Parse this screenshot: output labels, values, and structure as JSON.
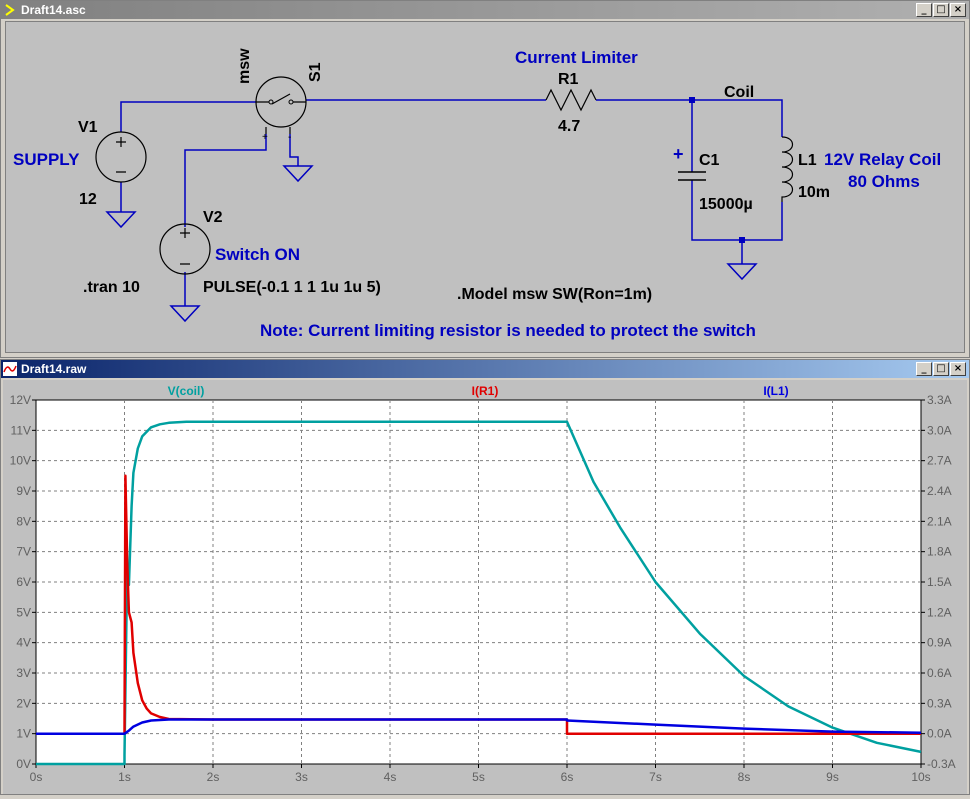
{
  "schematic_window": {
    "title": "Draft14.asc",
    "controls": {
      "minimize": "_",
      "restore": "□",
      "close": "×"
    }
  },
  "schematic": {
    "v1": {
      "name": "V1",
      "label": "SUPPLY",
      "value": "12"
    },
    "v2": {
      "name": "V2",
      "label": "Switch ON",
      "value": "PULSE(-0.1 1 1 1u 1u 5)"
    },
    "s1": {
      "name": "S1",
      "model": "msw",
      "plus": "+",
      "minus": "-"
    },
    "r1": {
      "name": "R1",
      "label": "Current Limiter",
      "value": "4.7"
    },
    "c1": {
      "name": "C1",
      "value": "15000µ",
      "polarity": "+"
    },
    "l1": {
      "name": "L1",
      "value": "10m",
      "label_line1": "12V Relay Coil",
      "label_line2": "80 Ohms"
    },
    "net_coil": "Coil",
    "tran": ".tran 10",
    "model": ".Model msw SW(Ron=1m)",
    "note": "Note: Current limiting resistor is needed to protect the switch"
  },
  "plot_window": {
    "title": "Draft14.raw",
    "controls": {
      "minimize": "_",
      "restore": "□",
      "close": "×"
    }
  },
  "colors": {
    "schematic_wire": "#0000c0",
    "schematic_label": "#0000c0",
    "v_coil": "#00a0a0",
    "i_r1": "#e00000",
    "i_l1": "#0000e0",
    "grid": "#808080"
  },
  "chart_data": {
    "type": "line",
    "x_ticks": [
      "0s",
      "1s",
      "2s",
      "3s",
      "4s",
      "5s",
      "6s",
      "7s",
      "8s",
      "9s",
      "10s"
    ],
    "xlim": [
      0,
      10
    ],
    "y_left_ticks": [
      "0V",
      "1V",
      "2V",
      "3V",
      "4V",
      "5V",
      "6V",
      "7V",
      "8V",
      "9V",
      "10V",
      "11V",
      "12V"
    ],
    "ylim_left": [
      0,
      12
    ],
    "y_right_ticks": [
      "-0.3A",
      "0.0A",
      "0.3A",
      "0.6A",
      "0.9A",
      "1.2A",
      "1.5A",
      "1.8A",
      "2.1A",
      "2.4A",
      "2.7A",
      "3.0A",
      "3.3A"
    ],
    "ylim_right": [
      -0.3,
      3.3
    ],
    "grid": true,
    "series": [
      {
        "name": "V(coil)",
        "axis": "left",
        "color": "#00a0a0",
        "x": [
          0,
          1,
          1.0,
          1.03,
          1.05,
          1.08,
          1.1,
          1.15,
          1.2,
          1.3,
          1.4,
          1.5,
          1.7,
          2,
          3,
          4,
          5,
          6,
          6.3,
          6.6,
          7,
          7.5,
          8,
          8.5,
          9,
          9.5,
          10
        ],
        "y": [
          0,
          0,
          0.3,
          6.5,
          5.9,
          8.5,
          9.6,
          10.4,
          10.8,
          11.1,
          11.2,
          11.25,
          11.28,
          11.28,
          11.28,
          11.28,
          11.28,
          11.28,
          9.3,
          7.8,
          6.0,
          4.3,
          2.9,
          1.9,
          1.2,
          0.7,
          0.4
        ]
      },
      {
        "name": "I(R1)",
        "axis": "right",
        "color": "#e00000",
        "x": [
          0,
          1,
          1.0,
          1.01,
          1.03,
          1.05,
          1.08,
          1.1,
          1.15,
          1.2,
          1.25,
          1.3,
          1.4,
          1.5,
          2,
          3,
          4,
          5,
          6,
          6.0,
          7,
          8,
          9,
          10
        ],
        "y": [
          0,
          0,
          0,
          2.55,
          1.7,
          1.2,
          1.1,
          0.8,
          0.5,
          0.33,
          0.25,
          0.2,
          0.165,
          0.145,
          0.14,
          0.14,
          0.14,
          0.14,
          0.14,
          0,
          0,
          0,
          0,
          0
        ]
      },
      {
        "name": "I(L1)",
        "axis": "right",
        "color": "#0000e0",
        "x": [
          0,
          1,
          1.05,
          1.1,
          1.2,
          1.3,
          1.5,
          2,
          3,
          4,
          5,
          6,
          6.0,
          7,
          8,
          9,
          10
        ],
        "y": [
          0,
          0,
          0.03,
          0.07,
          0.11,
          0.13,
          0.14,
          0.14,
          0.14,
          0.14,
          0.14,
          0.14,
          0.13,
          0.09,
          0.05,
          0.02,
          0.01
        ]
      }
    ]
  }
}
